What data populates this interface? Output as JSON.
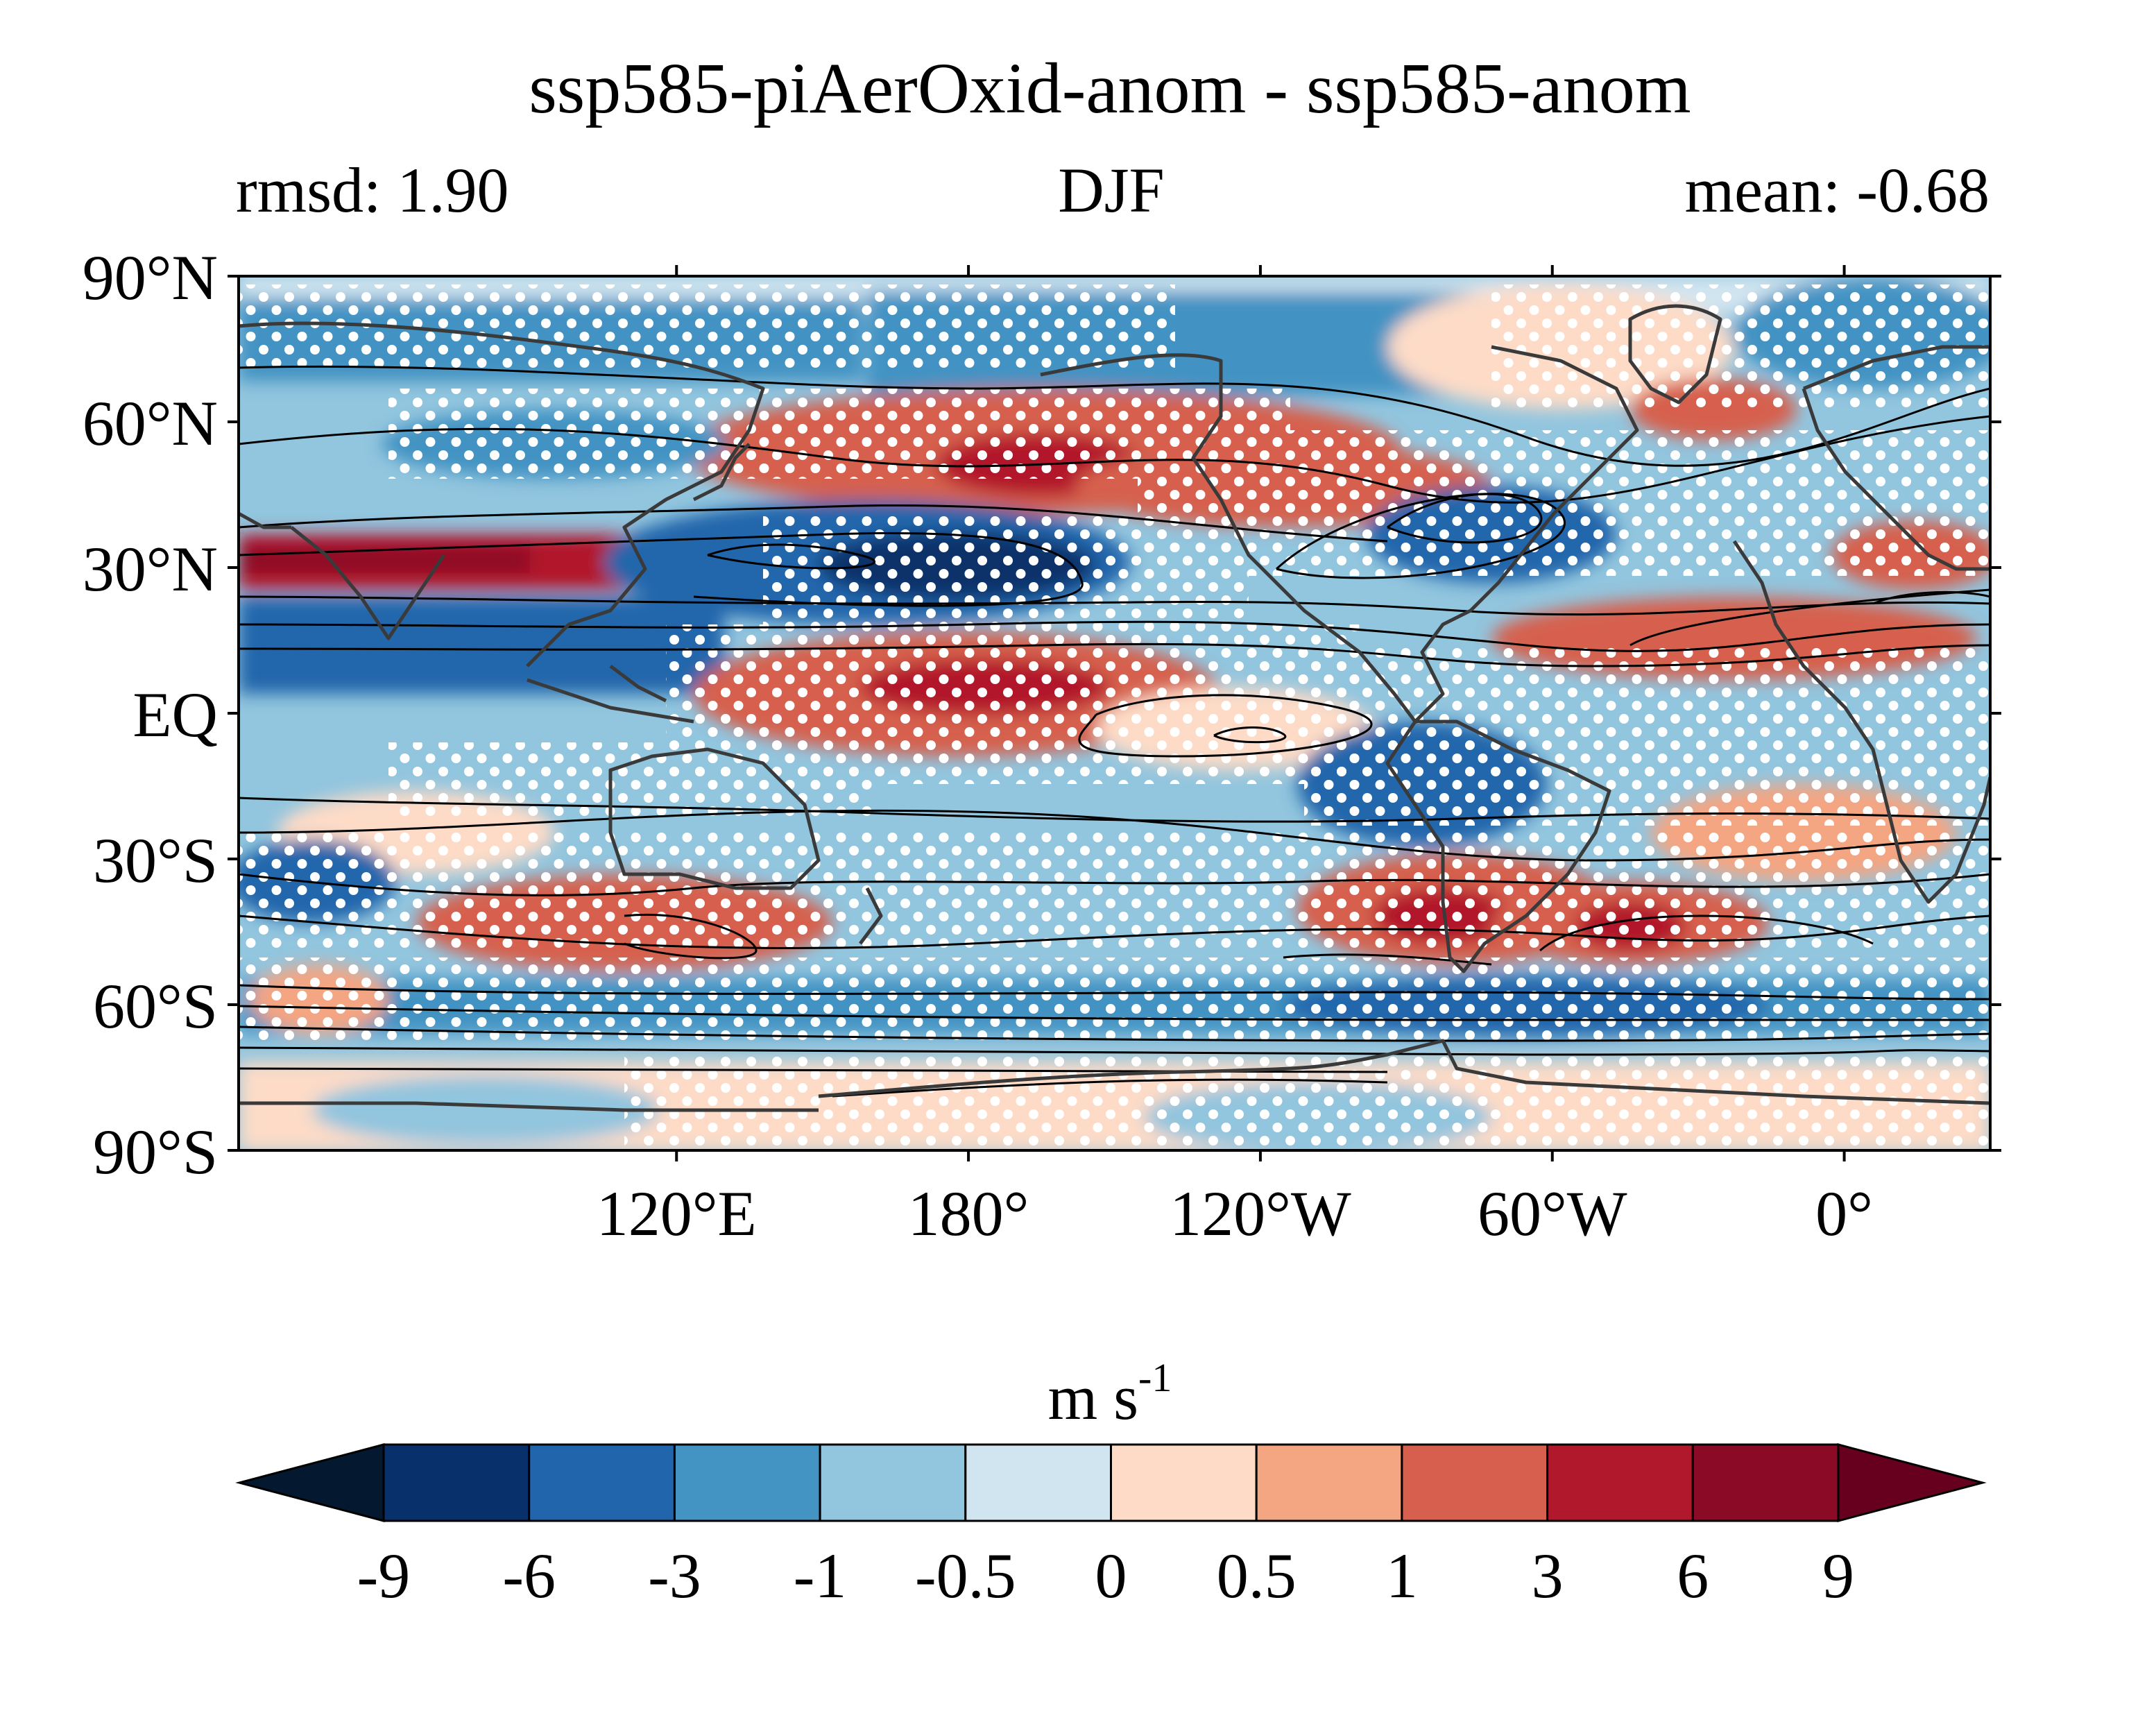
{
  "figure": {
    "title": "ssp585-piAerOxid-anom - ssp585-anom",
    "subtitle_left": "rmsd: 1.90",
    "subtitle_center": "DJF",
    "subtitle_right": "mean: -0.68"
  },
  "map": {
    "projection": "equirectangular",
    "lon_range_degE": [
      30,
      390
    ],
    "lat_range": [
      -90,
      90
    ],
    "lat_ticks": [
      {
        "value": 90,
        "label": "90°N"
      },
      {
        "value": 60,
        "label": "60°N"
      },
      {
        "value": 30,
        "label": "30°N"
      },
      {
        "value": 0,
        "label": "EQ"
      },
      {
        "value": -30,
        "label": "30°S"
      },
      {
        "value": -60,
        "label": "60°S"
      },
      {
        "value": -90,
        "label": "90°S"
      }
    ],
    "lon_ticks": [
      {
        "value": 120,
        "label": "120°E"
      },
      {
        "value": 180,
        "label": "180°"
      },
      {
        "value": 240,
        "label": "120°W"
      },
      {
        "value": 300,
        "label": "60°W"
      },
      {
        "value": 360,
        "label": "0°"
      }
    ],
    "stippling": "white dots mark significant regions",
    "contours": "black climatology contour lines",
    "coastline_color": "#3a3a3a"
  },
  "colorbar": {
    "unit_base": "m s",
    "unit_exp": "-1",
    "extend": "both",
    "under_color": "#041830",
    "over_color": "#67001f",
    "bins": [
      {
        "color": "#08306b"
      },
      {
        "color": "#2166ac"
      },
      {
        "color": "#4393c3"
      },
      {
        "color": "#92c5de"
      },
      {
        "color": "#d1e5f0"
      },
      {
        "color": "#fddbc7"
      },
      {
        "color": "#f4a582"
      },
      {
        "color": "#d6604d"
      },
      {
        "color": "#b2182b"
      },
      {
        "color": "#8b0a26"
      }
    ],
    "tick_labels": [
      "-9",
      "-6",
      "-3",
      "-1",
      "-0.5",
      "0",
      "0.5",
      "1",
      "3",
      "6",
      "9"
    ]
  }
}
